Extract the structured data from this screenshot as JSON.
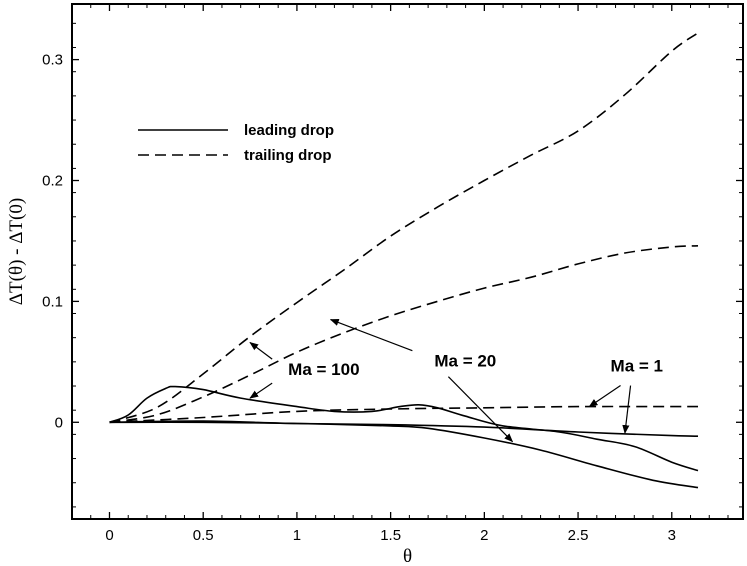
{
  "chart_data": {
    "type": "line",
    "title": "",
    "xlabel": "θ",
    "ylabel": "ΔT(θ) - ΔT(0)",
    "xlim": [
      -0.2,
      3.38
    ],
    "ylim": [
      -0.08,
      0.346
    ],
    "xticks": [
      0,
      0.5,
      1,
      1.5,
      2,
      2.5,
      3
    ],
    "xtick_labels": [
      "0",
      "0.5",
      "1",
      "1.5",
      "2",
      "2.5",
      "3"
    ],
    "yticks": [
      0,
      0.1,
      0.2,
      0.3
    ],
    "ytick_labels": [
      "0",
      "0.1",
      "0.2",
      "0.3"
    ],
    "legend": [
      {
        "label": "leading drop",
        "style": "solid"
      },
      {
        "label": "trailing drop",
        "style": "dashed"
      }
    ],
    "series": [
      {
        "name": "leading drop, Ma = 1",
        "style": "solid",
        "x": [
          0,
          0.5,
          1,
          1.5,
          2,
          2.5,
          3,
          3.14
        ],
        "y": [
          0,
          0.001,
          -0.001,
          -0.002,
          -0.004,
          -0.008,
          -0.011,
          -0.0115
        ]
      },
      {
        "name": "leading drop, Ma = 20",
        "style": "solid",
        "x": [
          0,
          0.5,
          1,
          1.5,
          1.7,
          2,
          2.3,
          2.6,
          2.9,
          3.14
        ],
        "y": [
          0,
          0,
          -0.001,
          -0.003,
          -0.005,
          -0.013,
          -0.023,
          -0.036,
          -0.048,
          -0.054
        ]
      },
      {
        "name": "leading drop, Ma = 100",
        "style": "solid",
        "x": [
          0,
          0.1,
          0.2,
          0.3,
          0.35,
          0.5,
          0.7,
          1.0,
          1.2,
          1.4,
          1.55,
          1.65,
          1.75,
          1.9,
          2.1,
          2.4,
          2.6,
          2.8,
          3.0,
          3.14
        ],
        "y": [
          0,
          0.006,
          0.02,
          0.028,
          0.0295,
          0.027,
          0.02,
          0.013,
          0.009,
          0.009,
          0.013,
          0.0145,
          0.012,
          0.005,
          -0.003,
          -0.008,
          -0.014,
          -0.02,
          -0.033,
          -0.04
        ]
      },
      {
        "name": "trailing drop, Ma = 1",
        "style": "dashed",
        "x": [
          0,
          0.5,
          1,
          1.5,
          2,
          2.5,
          3,
          3.14
        ],
        "y": [
          0,
          0.004,
          0.009,
          0.011,
          0.012,
          0.013,
          0.013,
          0.013
        ]
      },
      {
        "name": "trailing drop, Ma = 20",
        "style": "dashed",
        "x": [
          0,
          0.25,
          0.5,
          0.75,
          1.0,
          1.25,
          1.5,
          1.75,
          2.0,
          2.25,
          2.5,
          2.75,
          3.0,
          3.14
        ],
        "y": [
          0,
          0.006,
          0.021,
          0.039,
          0.058,
          0.074,
          0.088,
          0.1,
          0.111,
          0.12,
          0.131,
          0.14,
          0.145,
          0.146
        ]
      },
      {
        "name": "trailing drop, Ma = 100",
        "style": "dashed",
        "x": [
          0,
          0.25,
          0.5,
          0.75,
          1.0,
          1.25,
          1.5,
          1.75,
          2.0,
          2.25,
          2.5,
          2.75,
          3.0,
          3.14
        ],
        "y": [
          0,
          0.012,
          0.04,
          0.071,
          0.099,
          0.126,
          0.154,
          0.178,
          0.2,
          0.221,
          0.241,
          0.271,
          0.307,
          0.322
        ]
      }
    ],
    "annotations": [
      {
        "text": "Ma = 100",
        "label_at": [
          0.9,
          0.039
        ],
        "arrows_to": [
          [
            0.75,
            0.066
          ],
          [
            0.75,
            0.02
          ]
        ]
      },
      {
        "text": "Ma = 20",
        "label_at": [
          1.68,
          0.046
        ],
        "arrows_to": [
          [
            1.18,
            0.085
          ],
          [
            2.15,
            -0.016
          ]
        ]
      },
      {
        "text": "Ma = 1",
        "label_at": [
          2.62,
          0.042
        ],
        "arrows_to": [
          [
            2.56,
            0.013
          ],
          [
            2.75,
            -0.009
          ]
        ]
      }
    ]
  }
}
